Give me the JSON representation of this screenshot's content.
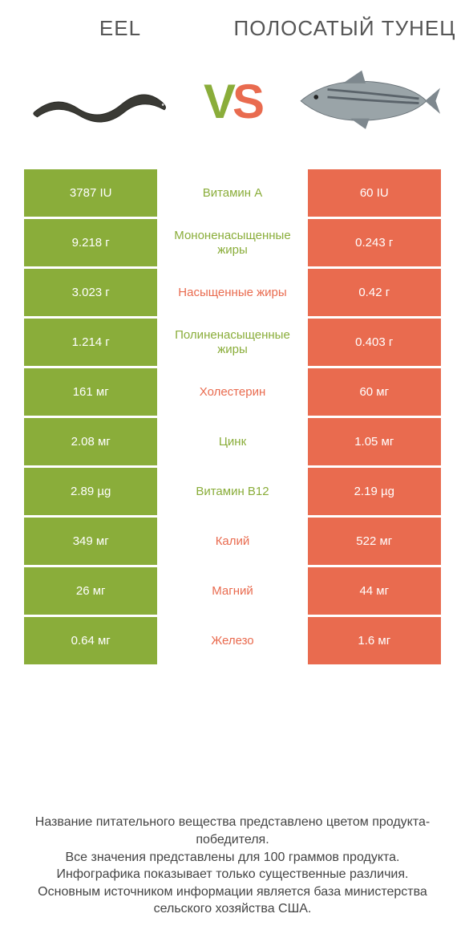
{
  "colors": {
    "green": "#8aad3a",
    "green_dark": "#7a9a33",
    "orange": "#e96b4f",
    "orange_dark": "#d95f45",
    "text": "#555555",
    "footer_text": "#444444",
    "white": "#ffffff"
  },
  "header": {
    "left_title": "Eel",
    "right_title": "Полосатый тунец",
    "vs_v": "V",
    "vs_s": "S"
  },
  "icons": {
    "left": "eel-illustration",
    "right": "tuna-illustration"
  },
  "comparison": {
    "type": "table",
    "left_color": "#8aad3a",
    "right_color": "#e96b4f",
    "rows": [
      {
        "left": "3787 IU",
        "mid": "Витамин A",
        "right": "60 IU",
        "winner": "left"
      },
      {
        "left": "9.218 г",
        "mid": "Мононенасыщенные жиры",
        "right": "0.243 г",
        "winner": "left"
      },
      {
        "left": "3.023 г",
        "mid": "Насыщенные жиры",
        "right": "0.42 г",
        "winner": "right"
      },
      {
        "left": "1.214 г",
        "mid": "Полиненасыщенные жиры",
        "right": "0.403 г",
        "winner": "left"
      },
      {
        "left": "161 мг",
        "mid": "Холестерин",
        "right": "60 мг",
        "winner": "right"
      },
      {
        "left": "2.08 мг",
        "mid": "Цинк",
        "right": "1.05 мг",
        "winner": "left"
      },
      {
        "left": "2.89 µg",
        "mid": "Витамин B12",
        "right": "2.19 µg",
        "winner": "left"
      },
      {
        "left": "349 мг",
        "mid": "Калий",
        "right": "522 мг",
        "winner": "right"
      },
      {
        "left": "26 мг",
        "mid": "Магний",
        "right": "44 мг",
        "winner": "right"
      },
      {
        "left": "0.64 мг",
        "mid": "Железо",
        "right": "1.6 мг",
        "winner": "right"
      }
    ]
  },
  "footer": {
    "line1": "Название питательного вещества представлено цветом продукта-победителя.",
    "line2": "Все значения представлены для 100 граммов продукта.",
    "line3": "Инфографика показывает только существенные различия.",
    "line4": "Основным источником информации является база министерства сельского хозяйства США."
  }
}
